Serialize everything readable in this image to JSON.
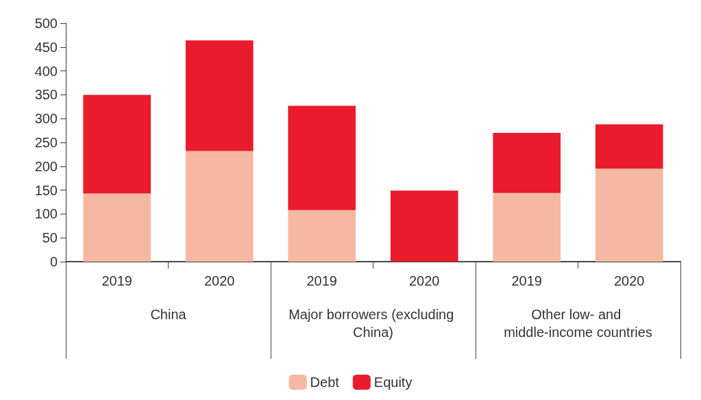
{
  "chart_data": {
    "type": "bar",
    "stacked": true,
    "categories": [
      "2019",
      "2020",
      "2019",
      "2020",
      "2019",
      "2020"
    ],
    "series": [
      {
        "name": "Debt",
        "color": "#f6b8a2",
        "values": [
          143,
          232,
          108,
          0,
          144,
          195
        ]
      },
      {
        "name": "Equity",
        "color": "#e91b2c",
        "values": [
          207,
          232,
          219,
          149,
          126,
          93
        ]
      }
    ],
    "annotations": [
      "China",
      "Major borrowers (excluding China)",
      "Other low- and middle-income countries"
    ],
    "ylim": [
      0,
      500
    ],
    "yticks": [
      0,
      50,
      100,
      150,
      200,
      250,
      300,
      350,
      400,
      450,
      500
    ],
    "grid": false,
    "legend": "bottom"
  }
}
